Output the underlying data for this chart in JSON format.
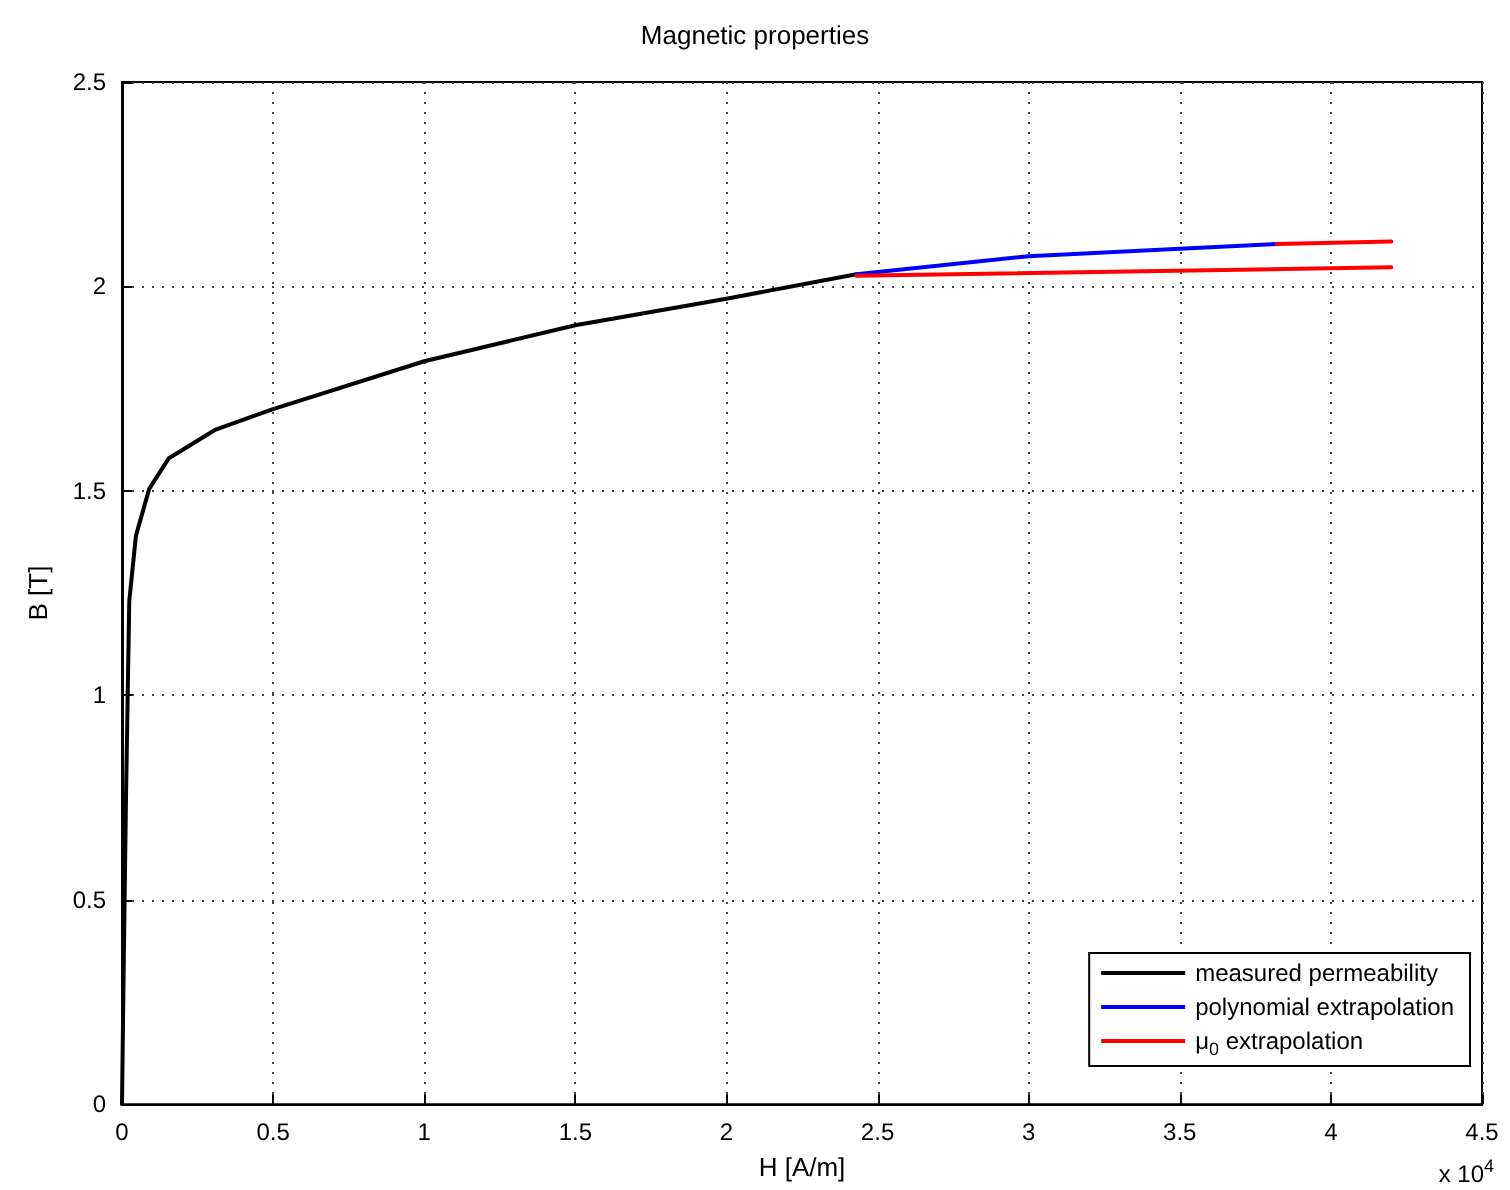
{
  "chart_data": {
    "type": "line",
    "title": "Magnetic properties",
    "xlabel": "H [A/m]",
    "ylabel": "B [T]",
    "annotations": [
      "x 10$^{4}$"
    ],
    "xlim": [
      0,
      4.5
    ],
    "xticks": [
      0,
      0.5,
      1,
      1.5,
      2,
      2.5,
      3,
      3.5,
      4,
      4.5
    ],
    "ylim": [
      0,
      2.5
    ],
    "yticks": [
      0,
      0.5,
      1,
      1.5,
      2,
      2.5
    ],
    "grid": true,
    "legend": "bottom right",
    "marker": "none",
    "line_style": "solid",
    "series": [
      {
        "name": "measured permeability",
        "color": "#000000",
        "x": [
          0,
          0.005,
          0.013,
          0.024,
          0.046,
          0.09,
          0.155,
          0.31,
          0.5,
          1.0,
          1.5,
          2.0,
          2.43
        ],
        "values": [
          0,
          0.3,
          0.74,
          1.23,
          1.39,
          1.505,
          1.58,
          1.65,
          1.7,
          1.817,
          1.905,
          1.97,
          2.03
        ]
      },
      {
        "name": "polynomial extrapolation",
        "color": "#0000ff",
        "x": [
          2.43,
          3.0,
          3.5,
          3.82
        ],
        "values": [
          2.03,
          2.074,
          2.092,
          2.104
        ]
      },
      {
        "name": "μ$_{0}$ extrapolation",
        "color": "#ff0000",
        "x": [
          2.43,
          4.2
        ],
        "values": [
          2.026,
          2.047
        ]
      },
      {
        "color": "#ff0000",
        "x": [
          3.82,
          4.2
        ],
        "values": [
          2.104,
          2.11
        ]
      }
    ]
  }
}
